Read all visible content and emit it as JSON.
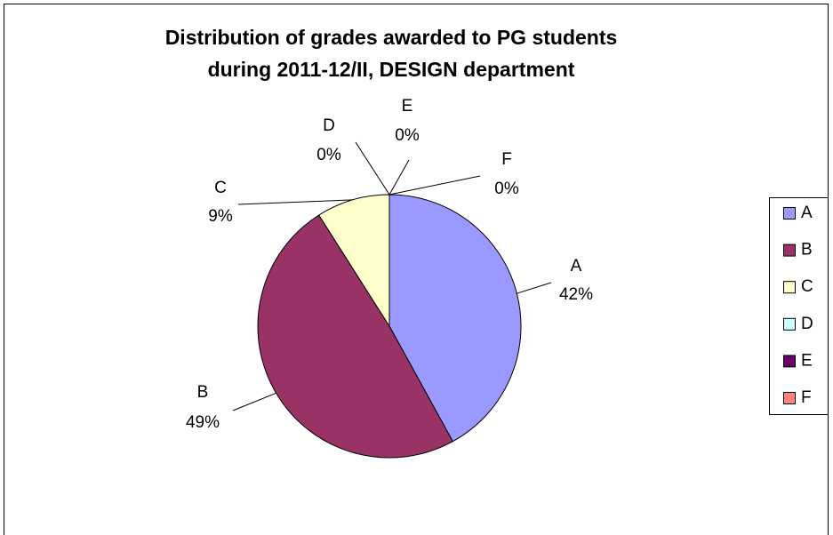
{
  "chart_data": {
    "type": "pie",
    "title": [
      "Distribution of grades awarded to PG students",
      "during 2011-12/II, DESIGN department"
    ],
    "categories": [
      "A",
      "B",
      "C",
      "D",
      "E",
      "F"
    ],
    "values": [
      42,
      49,
      9,
      0,
      0,
      0
    ],
    "value_labels": [
      "42%",
      "49%",
      "9%",
      "0%",
      "0%",
      "0%"
    ],
    "colors": [
      "#9999ff",
      "#993366",
      "#ffffcc",
      "#ccffff",
      "#660066",
      "#ff8080"
    ],
    "legend": "right"
  }
}
